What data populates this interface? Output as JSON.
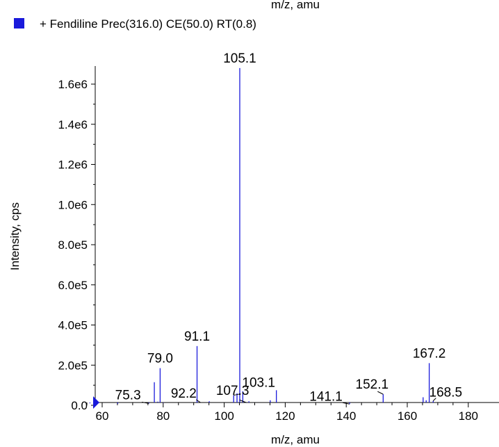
{
  "header": {
    "clipped_axis_label": "m/z, amu",
    "legend_label": "+ Fendiline Prec(316.0) CE(50.0) RT(0.8)",
    "legend_color": "#1a1adb"
  },
  "chart_data": {
    "type": "bar",
    "title": "",
    "xlabel": "m/z, amu",
    "ylabel": "Intensity, cps",
    "xlim": [
      55,
      184
    ],
    "ylim": [
      0,
      1750000
    ],
    "x_ticks": [
      {
        "value": 60,
        "label": "60"
      },
      {
        "value": 80,
        "label": "80"
      },
      {
        "value": 100,
        "label": "100"
      },
      {
        "value": 120,
        "label": "120"
      },
      {
        "value": 140,
        "label": "140"
      },
      {
        "value": 160,
        "label": "160"
      },
      {
        "value": 180,
        "label": "180"
      }
    ],
    "y_ticks": [
      {
        "value": 0,
        "label": "0.0"
      },
      {
        "value": 200000,
        "label": "2.0e5"
      },
      {
        "value": 400000,
        "label": "4.0e5"
      },
      {
        "value": 600000,
        "label": "6.0e5"
      },
      {
        "value": 800000,
        "label": "8.0e5"
      },
      {
        "value": 1000000,
        "label": "1.0e6"
      },
      {
        "value": 1200000,
        "label": "1.2e6"
      },
      {
        "value": 1400000,
        "label": "1.4e6"
      },
      {
        "value": 1600000,
        "label": "1.6e6"
      }
    ],
    "series": [
      {
        "color": "#1a1adb",
        "x": [
          56.0,
          65.1,
          75.3,
          77.1,
          78.2,
          79.0,
          80.1,
          91.1,
          92.2,
          95.1,
          103.1,
          104.2,
          105.1,
          106.1,
          107.3,
          108.1,
          115.1,
          117.1,
          141.1,
          152.1,
          165.2,
          166.2,
          167.2,
          168.5
        ],
        "values": [
          10000,
          8000,
          9000,
          115000,
          18000,
          185000,
          12000,
          295000,
          14000,
          20000,
          50000,
          60000,
          1680000,
          70000,
          13000,
          20000,
          25000,
          75000,
          6000,
          55000,
          40000,
          25000,
          210000,
          22000
        ]
      }
    ],
    "peak_labels": [
      {
        "x": 105.1,
        "text": "105.1"
      },
      {
        "x": 91.1,
        "text": "91.1"
      },
      {
        "x": 79.0,
        "text": "79.0"
      },
      {
        "x": 103.1,
        "text": "103.1"
      },
      {
        "x": 167.2,
        "text": "167.2"
      },
      {
        "x": 75.3,
        "text": "75.3"
      },
      {
        "x": 92.2,
        "text": "92.2"
      },
      {
        "x": 107.3,
        "text": "107.3"
      },
      {
        "x": 141.1,
        "text": "141.1"
      },
      {
        "x": 152.1,
        "text": "152.1"
      },
      {
        "x": 168.5,
        "text": "168.5"
      }
    ]
  }
}
